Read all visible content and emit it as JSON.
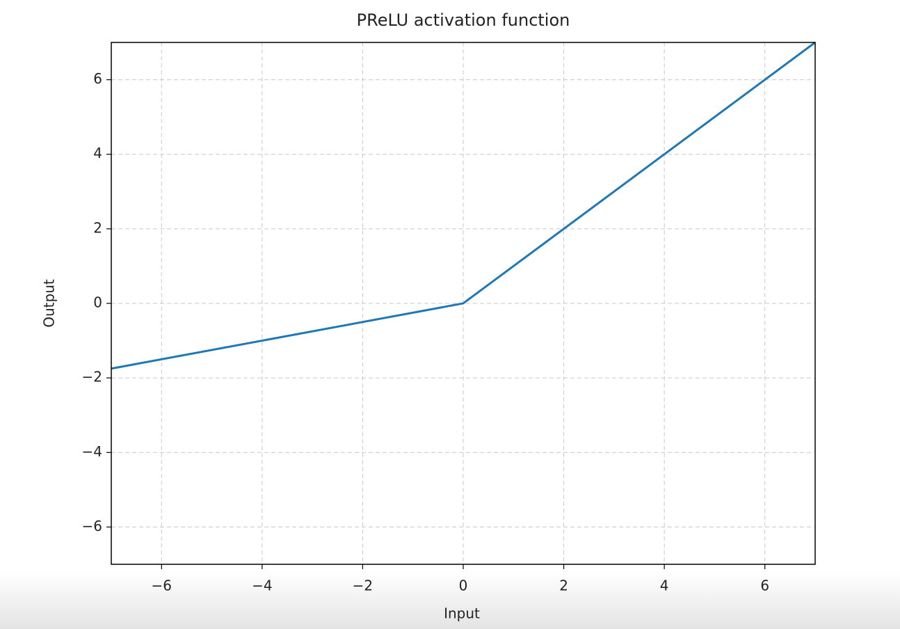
{
  "chart_data": {
    "type": "line",
    "title": "PReLU activation function",
    "x_label": "Input",
    "y_label": "Output",
    "x": [
      -7,
      0,
      7
    ],
    "series": [
      {
        "color": "#1f77b4",
        "values": [
          -1.75,
          0,
          7
        ]
      }
    ],
    "xlim": [
      -7,
      7
    ],
    "ylim": [
      -7,
      7
    ],
    "xticks": [
      {
        "value": -6,
        "label": "−6"
      },
      {
        "value": -4,
        "label": "−4"
      },
      {
        "value": -2,
        "label": "−2"
      },
      0,
      2,
      4,
      6
    ],
    "yticks": [
      {
        "value": -6,
        "label": "−6"
      },
      {
        "value": -4,
        "label": "−4"
      },
      {
        "value": -2,
        "label": "−2"
      },
      0,
      2,
      4,
      6
    ],
    "grid": true
  }
}
